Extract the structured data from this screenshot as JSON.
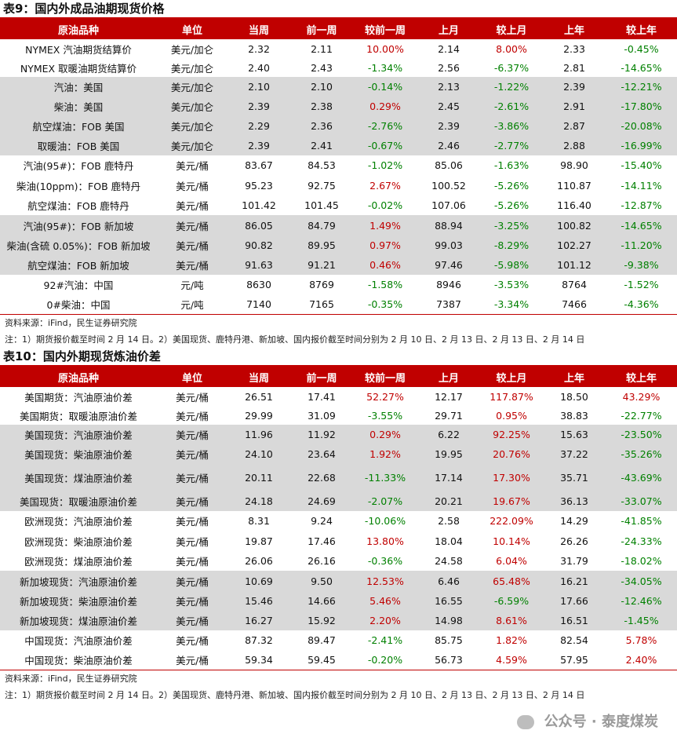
{
  "columns": [
    "原油品种",
    "单位",
    "当周",
    "前一周",
    "较前一周",
    "上月",
    "较上月",
    "上年",
    "较上年"
  ],
  "table9": {
    "title": "表9：国内外成品油期现货价格",
    "rows": [
      {
        "name": "NYMEX 汽油期货结算价",
        "unit": "美元/加仑",
        "cur": "2.32",
        "prev": "2.11",
        "wchg": "10.00%",
        "month": "2.14",
        "mchg": "8.00%",
        "year": "2.33",
        "ychg": "-0.45%"
      },
      {
        "name": "NYMEX 取暖油期货结算价",
        "unit": "美元/加仑",
        "cur": "2.40",
        "prev": "2.43",
        "wchg": "-1.34%",
        "month": "2.56",
        "mchg": "-6.37%",
        "year": "2.81",
        "ychg": "-14.65%"
      },
      {
        "name": "汽油：美国",
        "unit": "美元/加仑",
        "cur": "2.10",
        "prev": "2.10",
        "wchg": "-0.14%",
        "month": "2.13",
        "mchg": "-1.22%",
        "year": "2.39",
        "ychg": "-12.21%"
      },
      {
        "name": "柴油：美国",
        "unit": "美元/加仑",
        "cur": "2.39",
        "prev": "2.38",
        "wchg": "0.29%",
        "month": "2.45",
        "mchg": "-2.61%",
        "year": "2.91",
        "ychg": "-17.80%"
      },
      {
        "name": "航空煤油：FOB 美国",
        "unit": "美元/加仑",
        "cur": "2.29",
        "prev": "2.36",
        "wchg": "-2.76%",
        "month": "2.39",
        "mchg": "-3.86%",
        "year": "2.87",
        "ychg": "-20.08%"
      },
      {
        "name": "取暖油：FOB 美国",
        "unit": "美元/加仑",
        "cur": "2.39",
        "prev": "2.41",
        "wchg": "-0.67%",
        "month": "2.46",
        "mchg": "-2.77%",
        "year": "2.88",
        "ychg": "-16.99%"
      },
      {
        "name": "汽油(95#)：FOB 鹿特丹",
        "unit": "美元/桶",
        "cur": "83.67",
        "prev": "84.53",
        "wchg": "-1.02%",
        "month": "85.06",
        "mchg": "-1.63%",
        "year": "98.90",
        "ychg": "-15.40%"
      },
      {
        "name": "柴油(10ppm)：FOB 鹿特丹",
        "unit": "美元/桶",
        "cur": "95.23",
        "prev": "92.75",
        "wchg": "2.67%",
        "month": "100.52",
        "mchg": "-5.26%",
        "year": "110.87",
        "ychg": "-14.11%"
      },
      {
        "name": "航空煤油：FOB 鹿特丹",
        "unit": "美元/桶",
        "cur": "101.42",
        "prev": "101.45",
        "wchg": "-0.02%",
        "month": "107.06",
        "mchg": "-5.26%",
        "year": "116.40",
        "ychg": "-12.87%"
      },
      {
        "name": "汽油(95#)：FOB 新加坡",
        "unit": "美元/桶",
        "cur": "86.05",
        "prev": "84.79",
        "wchg": "1.49%",
        "month": "88.94",
        "mchg": "-3.25%",
        "year": "100.82",
        "ychg": "-14.65%"
      },
      {
        "name": "柴油(含硫 0.05%)：FOB 新加坡",
        "unit": "美元/桶",
        "cur": "90.82",
        "prev": "89.95",
        "wchg": "0.97%",
        "month": "99.03",
        "mchg": "-8.29%",
        "year": "102.27",
        "ychg": "-11.20%"
      },
      {
        "name": "航空煤油：FOB 新加坡",
        "unit": "美元/桶",
        "cur": "91.63",
        "prev": "91.21",
        "wchg": "0.46%",
        "month": "97.46",
        "mchg": "-5.98%",
        "year": "101.12",
        "ychg": "-9.38%"
      },
      {
        "name": "92#汽油：中国",
        "unit": "元/吨",
        "cur": "8630",
        "prev": "8769",
        "wchg": "-1.58%",
        "month": "8946",
        "mchg": "-3.53%",
        "year": "8764",
        "ychg": "-1.52%"
      },
      {
        "name": "0#柴油：中国",
        "unit": "元/吨",
        "cur": "7140",
        "prev": "7165",
        "wchg": "-0.35%",
        "month": "7387",
        "mchg": "-3.34%",
        "year": "7466",
        "ychg": "-4.36%"
      }
    ],
    "shading": [
      "w",
      "w",
      "g",
      "g",
      "g",
      "g",
      "w",
      "w",
      "w",
      "g",
      "g",
      "g",
      "w",
      "w"
    ],
    "heights": [
      24,
      24,
      25,
      25,
      25,
      25,
      25,
      26,
      25,
      26,
      25,
      25,
      25,
      25
    ],
    "source": "资料来源：iFind，民生证券研究院",
    "note": "注：1）期货报价截至时间 2 月 14 日。2）美国现货、鹿特丹港、新加坡、国内报价截至时间分别为 2 月 10 日、2 月 13 日、2 月 13 日、2 月 14 日"
  },
  "table10": {
    "title": "表10：国内外期现货炼油价差",
    "rows": [
      {
        "name": "美国期货：汽油原油价差",
        "unit": "美元/桶",
        "cur": "26.51",
        "prev": "17.41",
        "wchg": "52.27%",
        "month": "12.17",
        "mchg": "117.87%",
        "year": "18.50",
        "ychg": "43.29%"
      },
      {
        "name": "美国期货：取暖油原油价差",
        "unit": "美元/桶",
        "cur": "29.99",
        "prev": "31.09",
        "wchg": "-3.55%",
        "month": "29.71",
        "mchg": "0.95%",
        "year": "38.83",
        "ychg": "-22.77%"
      },
      {
        "name": "美国现货：汽油原油价差",
        "unit": "美元/桶",
        "cur": "11.96",
        "prev": "11.92",
        "wchg": "0.29%",
        "month": "6.22",
        "mchg": "92.25%",
        "year": "15.63",
        "ychg": "-23.50%"
      },
      {
        "name": "美国现货：柴油原油价差",
        "unit": "美元/桶",
        "cur": "24.10",
        "prev": "23.64",
        "wchg": "1.92%",
        "month": "19.95",
        "mchg": "20.76%",
        "year": "37.22",
        "ychg": "-35.26%"
      },
      {
        "name": "美国现货：煤油原油价差",
        "unit": "美元/桶",
        "cur": "20.11",
        "prev": "22.68",
        "wchg": "-11.33%",
        "month": "17.14",
        "mchg": "17.30%",
        "year": "35.71",
        "ychg": "-43.69%"
      },
      {
        "name": "美国现货：取暖油原油价差",
        "unit": "美元/桶",
        "cur": "24.18",
        "prev": "24.69",
        "wchg": "-2.07%",
        "month": "20.21",
        "mchg": "19.67%",
        "year": "36.13",
        "ychg": "-33.07%"
      },
      {
        "name": "欧洲现货：汽油原油价差",
        "unit": "美元/桶",
        "cur": "8.31",
        "prev": "9.24",
        "wchg": "-10.06%",
        "month": "2.58",
        "mchg": "222.09%",
        "year": "14.29",
        "ychg": "-41.85%"
      },
      {
        "name": "欧洲现货：柴油原油价差",
        "unit": "美元/桶",
        "cur": "19.87",
        "prev": "17.46",
        "wchg": "13.80%",
        "month": "18.04",
        "mchg": "10.14%",
        "year": "26.26",
        "ychg": "-24.33%"
      },
      {
        "name": "欧洲现货：煤油原油价差",
        "unit": "美元/桶",
        "cur": "26.06",
        "prev": "26.16",
        "wchg": "-0.36%",
        "month": "24.58",
        "mchg": "6.04%",
        "year": "31.79",
        "ychg": "-18.02%"
      },
      {
        "name": "新加坡现货：汽油原油价差",
        "unit": "美元/桶",
        "cur": "10.69",
        "prev": "9.50",
        "wchg": "12.53%",
        "month": "6.46",
        "mchg": "65.48%",
        "year": "16.21",
        "ychg": "-34.05%"
      },
      {
        "name": "新加坡现货：柴油原油价差",
        "unit": "美元/桶",
        "cur": "15.46",
        "prev": "14.66",
        "wchg": "5.46%",
        "month": "16.55",
        "mchg": "-6.59%",
        "year": "17.66",
        "ychg": "-12.46%"
      },
      {
        "name": "新加坡现货：煤油原油价差",
        "unit": "美元/桶",
        "cur": "16.27",
        "prev": "15.92",
        "wchg": "2.20%",
        "month": "14.98",
        "mchg": "8.61%",
        "year": "16.51",
        "ychg": "-1.45%"
      },
      {
        "name": "中国现货：汽油原油价差",
        "unit": "美元/桶",
        "cur": "87.32",
        "prev": "89.47",
        "wchg": "-2.41%",
        "month": "85.75",
        "mchg": "1.82%",
        "year": "82.54",
        "ychg": "5.78%"
      },
      {
        "name": "中国现货：柴油原油价差",
        "unit": "美元/桶",
        "cur": "59.34",
        "prev": "59.45",
        "wchg": "-0.20%",
        "month": "56.73",
        "mchg": "4.59%",
        "year": "57.95",
        "ychg": "2.40%"
      }
    ],
    "shading": [
      "w",
      "w",
      "g",
      "g",
      "g",
      "g",
      "w",
      "w",
      "w",
      "g",
      "g",
      "g",
      "w",
      "w"
    ],
    "heights": [
      25,
      25,
      25,
      26,
      35,
      25,
      25,
      26,
      25,
      25,
      26,
      25,
      25,
      25
    ],
    "source": "资料来源：iFind，民生证券研究院",
    "note": "注：1）期货报价截至时间 2 月 14 日。2）美国现货、鹿特丹港、新加坡、国内报价截至时间分别为 2 月 10 日、2 月 13 日、2 月 13 日、2 月 14 日"
  },
  "watermark": "公众号 · 泰度煤炭"
}
